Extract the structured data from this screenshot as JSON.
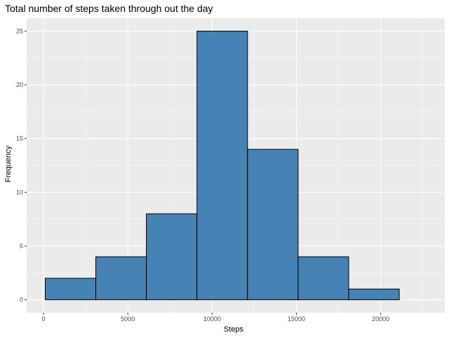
{
  "chart_data": {
    "type": "bar",
    "subtype": "histogram",
    "title": "Total number of steps taken through out the day",
    "xlabel": "Steps",
    "ylabel": "Frequency",
    "xlim": [
      -1000,
      23800
    ],
    "ylim": [
      -1.2,
      26.2
    ],
    "x_ticks": [
      0,
      5000,
      10000,
      15000,
      20000
    ],
    "y_ticks": [
      0,
      5,
      10,
      15,
      20,
      25
    ],
    "x_tick_labels": [
      "0",
      "5000",
      "10000",
      "15000",
      "20000"
    ],
    "y_tick_labels": [
      "0",
      "5",
      "10",
      "15",
      "20",
      "25"
    ],
    "grid": true,
    "legend": "none",
    "bins": [
      {
        "x_start": 100,
        "x_end": 3100,
        "count": 2
      },
      {
        "x_start": 3100,
        "x_end": 6100,
        "count": 4
      },
      {
        "x_start": 6100,
        "x_end": 9100,
        "count": 8
      },
      {
        "x_start": 9100,
        "x_end": 12100,
        "count": 25
      },
      {
        "x_start": 12100,
        "x_end": 15100,
        "count": 14
      },
      {
        "x_start": 15100,
        "x_end": 18100,
        "count": 4
      },
      {
        "x_start": 18100,
        "x_end": 21100,
        "count": 1
      }
    ],
    "colors": {
      "bar_fill": "#4682B4",
      "bar_stroke": "#000000",
      "panel_bg": "#EBEBEB",
      "grid_major": "#FFFFFF",
      "tick_label": "#4D4D4D"
    }
  }
}
